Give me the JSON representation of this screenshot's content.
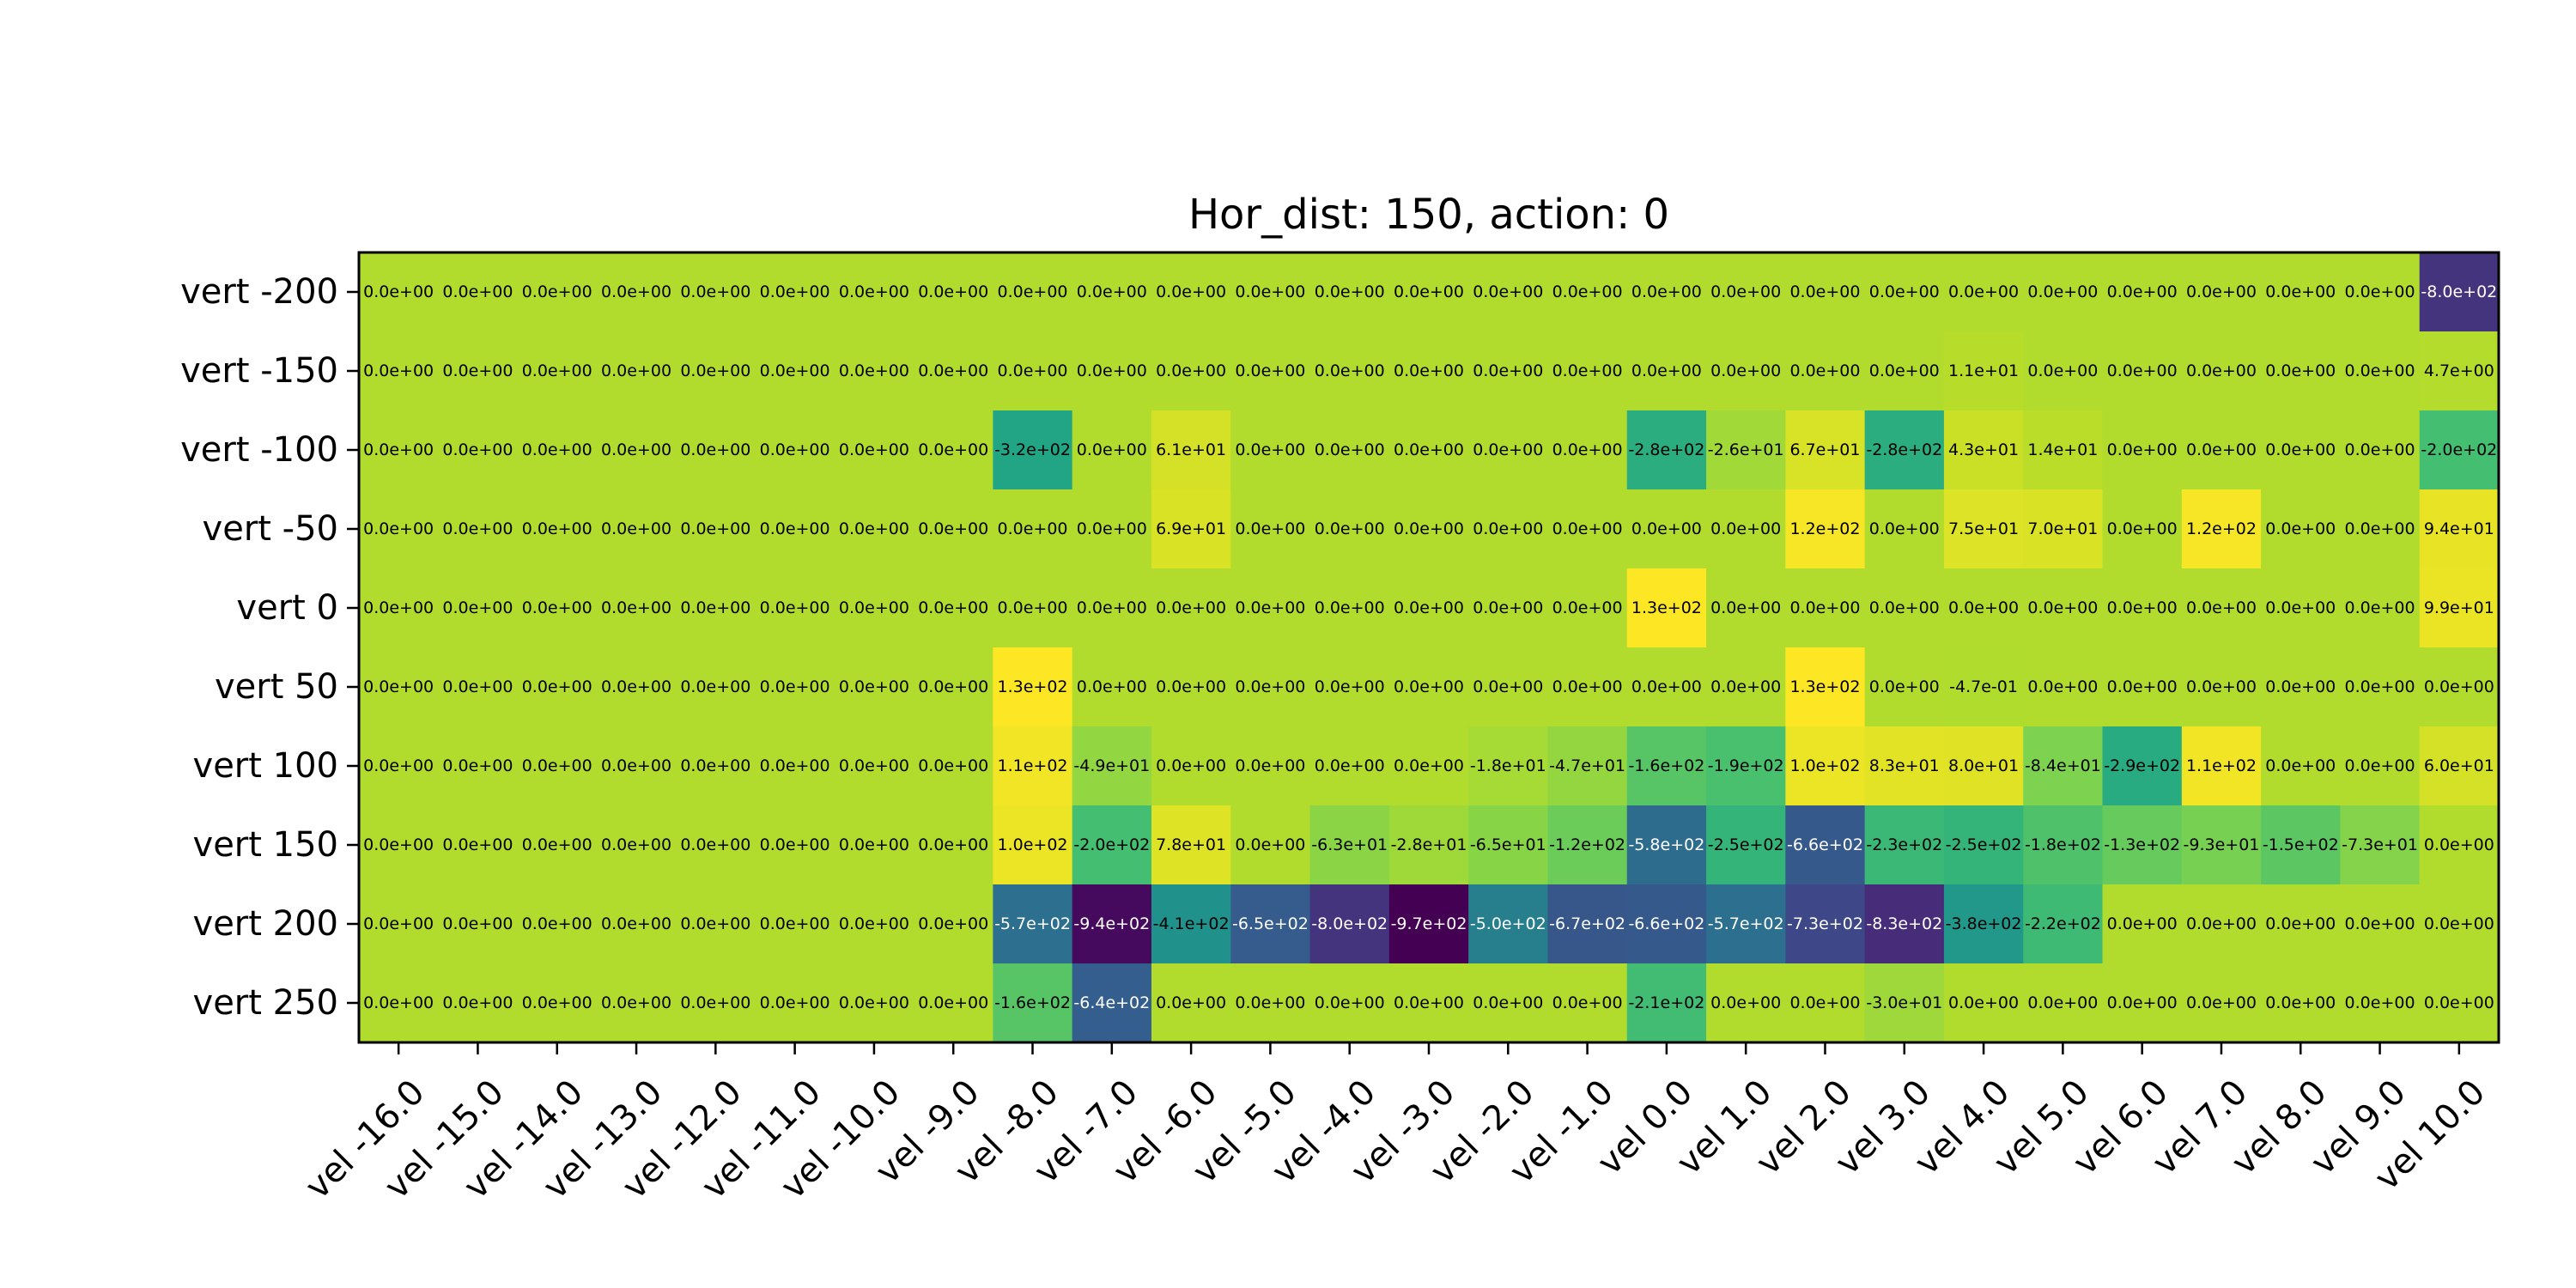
{
  "chart_data": {
    "type": "heatmap",
    "title": "Hor_dist: 150, action: 0",
    "colormap": "viridis",
    "x_labels": [
      "vel -16.0",
      "vel -15.0",
      "vel -14.0",
      "vel -13.0",
      "vel -12.0",
      "vel -11.0",
      "vel -10.0",
      "vel -9.0",
      "vel -8.0",
      "vel -7.0",
      "vel -6.0",
      "vel -5.0",
      "vel -4.0",
      "vel -3.0",
      "vel -2.0",
      "vel -1.0",
      "vel 0.0",
      "vel 1.0",
      "vel 2.0",
      "vel 3.0",
      "vel 4.0",
      "vel 5.0",
      "vel 6.0",
      "vel 7.0",
      "vel 8.0",
      "vel 9.0",
      "vel 10.0"
    ],
    "y_labels": [
      "vert -200",
      "vert -150",
      "vert -100",
      "vert -50",
      "vert 0",
      "vert 50",
      "vert 100",
      "vert 150",
      "vert 200",
      "vert 250"
    ],
    "values": [
      [
        0,
        0,
        0,
        0,
        0,
        0,
        0,
        0,
        0,
        0,
        0,
        0,
        0,
        0,
        0,
        0,
        0,
        0,
        0,
        0,
        0,
        0,
        0,
        0,
        0,
        0,
        -800
      ],
      [
        0,
        0,
        0,
        0,
        0,
        0,
        0,
        0,
        0,
        0,
        0,
        0,
        0,
        0,
        0,
        0,
        0,
        0,
        0,
        0,
        11,
        0,
        0,
        0,
        0,
        0,
        4.7
      ],
      [
        0,
        0,
        0,
        0,
        0,
        0,
        0,
        0,
        -320,
        0,
        61,
        0,
        0,
        0,
        0,
        0,
        -280,
        -26,
        67,
        -280,
        43,
        14,
        0,
        0,
        0,
        0,
        -200
      ],
      [
        0,
        0,
        0,
        0,
        0,
        0,
        0,
        0,
        0,
        0,
        69,
        0,
        0,
        0,
        0,
        0,
        0,
        0,
        120,
        0,
        75,
        70,
        0,
        120,
        0,
        0,
        94
      ],
      [
        0,
        0,
        0,
        0,
        0,
        0,
        0,
        0,
        0,
        0,
        0,
        0,
        0,
        0,
        0,
        0,
        130,
        0,
        0,
        0,
        0,
        0,
        0,
        0,
        0,
        0,
        99
      ],
      [
        0,
        0,
        0,
        0,
        0,
        0,
        0,
        0,
        130,
        0,
        0,
        0,
        0,
        0,
        0,
        0,
        0,
        0,
        130,
        0,
        -0.47,
        0,
        0,
        0,
        0,
        0,
        0
      ],
      [
        0,
        0,
        0,
        0,
        0,
        0,
        0,
        0,
        110,
        -49,
        0,
        0,
        0,
        0,
        -18,
        -47,
        -160,
        -190,
        100,
        83,
        80,
        -84,
        -290,
        110,
        0,
        0,
        60
      ],
      [
        0,
        0,
        0,
        0,
        0,
        0,
        0,
        0,
        100,
        -200,
        78,
        0,
        -63,
        -28,
        -65,
        -120,
        -580,
        -250,
        -660,
        -230,
        -250,
        -180,
        -130,
        -93,
        -150,
        -73,
        0
      ],
      [
        0,
        0,
        0,
        0,
        0,
        0,
        0,
        0,
        -570,
        -940,
        -410,
        -650,
        -800,
        -970,
        -500,
        -670,
        -660,
        -570,
        -730,
        -830,
        -380,
        -220,
        0,
        0,
        0,
        0,
        0
      ],
      [
        0,
        0,
        0,
        0,
        0,
        0,
        0,
        0,
        -160,
        -640,
        0,
        0,
        0,
        0,
        0,
        0,
        -210,
        0,
        0,
        -30,
        0,
        0,
        0,
        0,
        0,
        0,
        0
      ]
    ],
    "labels": [
      [
        "0.0e+00",
        "0.0e+00",
        "0.0e+00",
        "0.0e+00",
        "0.0e+00",
        "0.0e+00",
        "0.0e+00",
        "0.0e+00",
        "0.0e+00",
        "0.0e+00",
        "0.0e+00",
        "0.0e+00",
        "0.0e+00",
        "0.0e+00",
        "0.0e+00",
        "0.0e+00",
        "0.0e+00",
        "0.0e+00",
        "0.0e+00",
        "0.0e+00",
        "0.0e+00",
        "0.0e+00",
        "0.0e+00",
        "0.0e+00",
        "0.0e+00",
        "0.0e+00",
        "-8.0e+02"
      ],
      [
        "0.0e+00",
        "0.0e+00",
        "0.0e+00",
        "0.0e+00",
        "0.0e+00",
        "0.0e+00",
        "0.0e+00",
        "0.0e+00",
        "0.0e+00",
        "0.0e+00",
        "0.0e+00",
        "0.0e+00",
        "0.0e+00",
        "0.0e+00",
        "0.0e+00",
        "0.0e+00",
        "0.0e+00",
        "0.0e+00",
        "0.0e+00",
        "0.0e+00",
        "1.1e+01",
        "0.0e+00",
        "0.0e+00",
        "0.0e+00",
        "0.0e+00",
        "0.0e+00",
        "4.7e+00"
      ],
      [
        "0.0e+00",
        "0.0e+00",
        "0.0e+00",
        "0.0e+00",
        "0.0e+00",
        "0.0e+00",
        "0.0e+00",
        "0.0e+00",
        "-3.2e+02",
        "0.0e+00",
        "6.1e+01",
        "0.0e+00",
        "0.0e+00",
        "0.0e+00",
        "0.0e+00",
        "0.0e+00",
        "-2.8e+02",
        "-2.6e+01",
        "6.7e+01",
        "-2.8e+02",
        "4.3e+01",
        "1.4e+01",
        "0.0e+00",
        "0.0e+00",
        "0.0e+00",
        "0.0e+00",
        "-2.0e+02"
      ],
      [
        "0.0e+00",
        "0.0e+00",
        "0.0e+00",
        "0.0e+00",
        "0.0e+00",
        "0.0e+00",
        "0.0e+00",
        "0.0e+00",
        "0.0e+00",
        "0.0e+00",
        "6.9e+01",
        "0.0e+00",
        "0.0e+00",
        "0.0e+00",
        "0.0e+00",
        "0.0e+00",
        "0.0e+00",
        "0.0e+00",
        "1.2e+02",
        "0.0e+00",
        "7.5e+01",
        "7.0e+01",
        "0.0e+00",
        "1.2e+02",
        "0.0e+00",
        "0.0e+00",
        "9.4e+01"
      ],
      [
        "0.0e+00",
        "0.0e+00",
        "0.0e+00",
        "0.0e+00",
        "0.0e+00",
        "0.0e+00",
        "0.0e+00",
        "0.0e+00",
        "0.0e+00",
        "0.0e+00",
        "0.0e+00",
        "0.0e+00",
        "0.0e+00",
        "0.0e+00",
        "0.0e+00",
        "0.0e+00",
        "1.3e+02",
        "0.0e+00",
        "0.0e+00",
        "0.0e+00",
        "0.0e+00",
        "0.0e+00",
        "0.0e+00",
        "0.0e+00",
        "0.0e+00",
        "0.0e+00",
        "9.9e+01"
      ],
      [
        "0.0e+00",
        "0.0e+00",
        "0.0e+00",
        "0.0e+00",
        "0.0e+00",
        "0.0e+00",
        "0.0e+00",
        "0.0e+00",
        "1.3e+02",
        "0.0e+00",
        "0.0e+00",
        "0.0e+00",
        "0.0e+00",
        "0.0e+00",
        "0.0e+00",
        "0.0e+00",
        "0.0e+00",
        "0.0e+00",
        "1.3e+02",
        "0.0e+00",
        "-4.7e-01",
        "0.0e+00",
        "0.0e+00",
        "0.0e+00",
        "0.0e+00",
        "0.0e+00",
        "0.0e+00"
      ],
      [
        "0.0e+00",
        "0.0e+00",
        "0.0e+00",
        "0.0e+00",
        "0.0e+00",
        "0.0e+00",
        "0.0e+00",
        "0.0e+00",
        "1.1e+02",
        "-4.9e+01",
        "0.0e+00",
        "0.0e+00",
        "0.0e+00",
        "0.0e+00",
        "-1.8e+01",
        "-4.7e+01",
        "-1.6e+02",
        "-1.9e+02",
        "1.0e+02",
        "8.3e+01",
        "8.0e+01",
        "-8.4e+01",
        "-2.9e+02",
        "1.1e+02",
        "0.0e+00",
        "0.0e+00",
        "6.0e+01"
      ],
      [
        "0.0e+00",
        "0.0e+00",
        "0.0e+00",
        "0.0e+00",
        "0.0e+00",
        "0.0e+00",
        "0.0e+00",
        "0.0e+00",
        "1.0e+02",
        "-2.0e+02",
        "7.8e+01",
        "0.0e+00",
        "-6.3e+01",
        "-2.8e+01",
        "-6.5e+01",
        "-1.2e+02",
        "-5.8e+02",
        "-2.5e+02",
        "-6.6e+02",
        "-2.3e+02",
        "-2.5e+02",
        "-1.8e+02",
        "-1.3e+02",
        "-9.3e+01",
        "-1.5e+02",
        "-7.3e+01",
        "0.0e+00"
      ],
      [
        "0.0e+00",
        "0.0e+00",
        "0.0e+00",
        "0.0e+00",
        "0.0e+00",
        "0.0e+00",
        "0.0e+00",
        "0.0e+00",
        "-5.7e+02",
        "-9.4e+02",
        "-4.1e+02",
        "-6.5e+02",
        "-8.0e+02",
        "-9.7e+02",
        "-5.0e+02",
        "-6.7e+02",
        "-6.6e+02",
        "-5.7e+02",
        "-7.3e+02",
        "-8.3e+02",
        "-3.8e+02",
        "-2.2e+02",
        "0.0e+00",
        "0.0e+00",
        "0.0e+00",
        "0.0e+00",
        "0.0e+00"
      ],
      [
        "0.0e+00",
        "0.0e+00",
        "0.0e+00",
        "0.0e+00",
        "0.0e+00",
        "0.0e+00",
        "0.0e+00",
        "0.0e+00",
        "-1.6e+02",
        "-6.4e+02",
        "0.0e+00",
        "0.0e+00",
        "0.0e+00",
        "0.0e+00",
        "0.0e+00",
        "0.0e+00",
        "-2.1e+02",
        "0.0e+00",
        "0.0e+00",
        "-3.0e+01",
        "0.0e+00",
        "0.0e+00",
        "0.0e+00",
        "0.0e+00",
        "0.0e+00",
        "0.0e+00",
        "0.0e+00"
      ]
    ],
    "grid": false,
    "legend": "none"
  }
}
